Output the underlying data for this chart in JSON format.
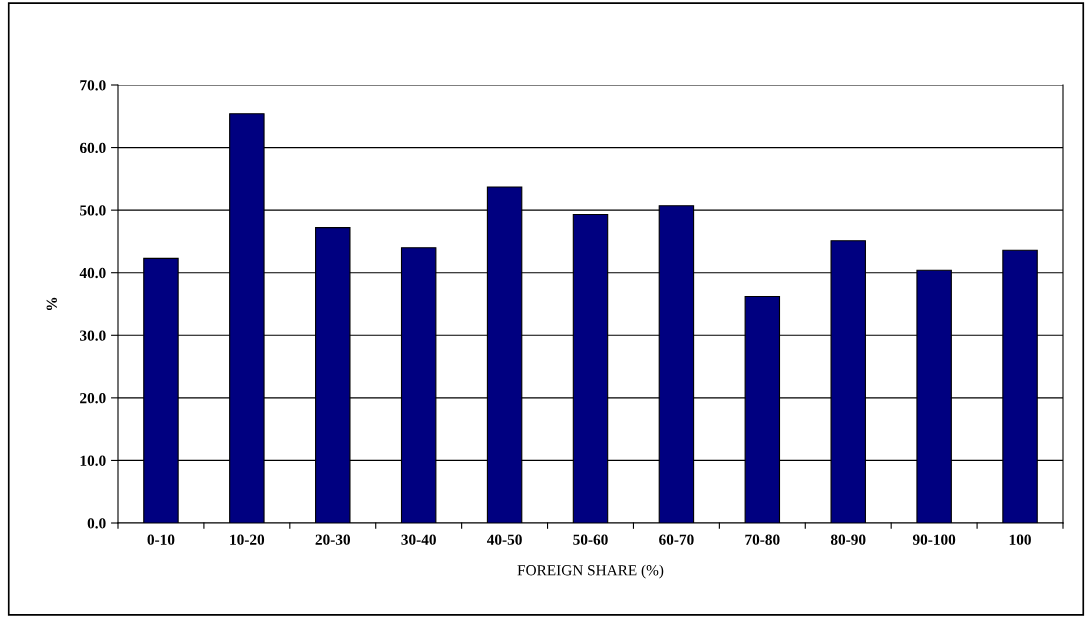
{
  "chart_data": {
    "type": "bar",
    "xlabel": "FOREIGN SHARE (%)",
    "ylabel": "%",
    "categories": [
      "0-10",
      "10-20",
      "20-30",
      "30-40",
      "40-50",
      "50-60",
      "60-70",
      "70-80",
      "80-90",
      "90-100",
      "100"
    ],
    "values": [
      42.3,
      65.4,
      47.2,
      44.0,
      53.7,
      49.3,
      50.7,
      36.2,
      45.1,
      40.4,
      43.6
    ],
    "color": "#000080",
    "ylim": [
      0,
      70
    ],
    "yticks": [
      {
        "value": 0,
        "label": "0.0"
      },
      {
        "value": 10,
        "label": "10.0"
      },
      {
        "value": 20,
        "label": "20.0"
      },
      {
        "value": 30,
        "label": "30.0"
      },
      {
        "value": 40,
        "label": "40.0"
      },
      {
        "value": 50,
        "label": "50.0"
      },
      {
        "value": 60,
        "label": "60.0"
      },
      {
        "value": 70,
        "label": "70.0"
      }
    ],
    "grid": "y",
    "legend": false
  }
}
